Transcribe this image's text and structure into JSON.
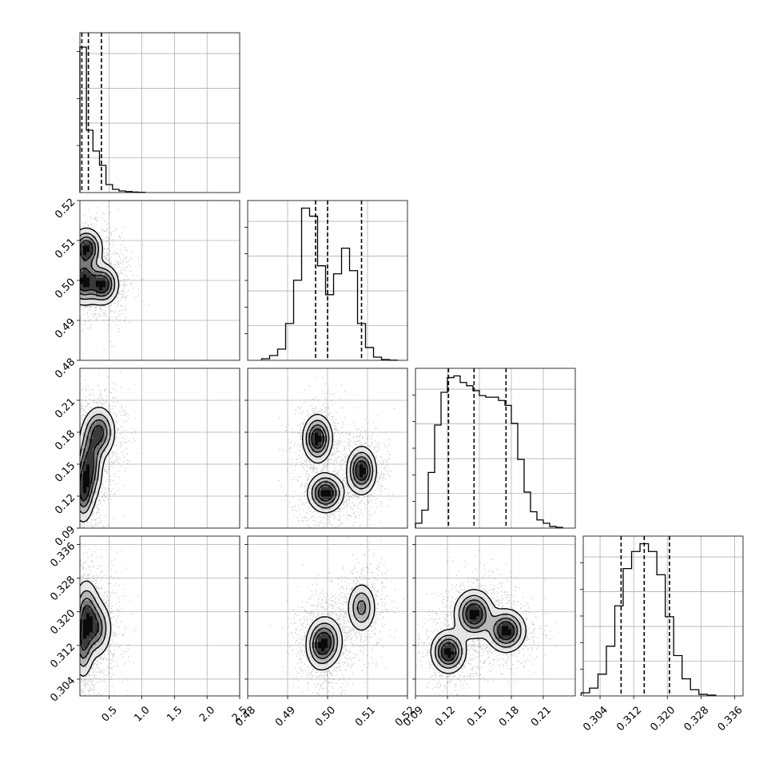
{
  "chart_data": {
    "type": "corner",
    "grid": true,
    "legend": "none",
    "parameters": [
      {
        "ylim": [
          0,
          1.0
        ],
        "range": [
          0.05,
          2.5
        ],
        "ticks": [
          0.5,
          1.0,
          1.5,
          2.0,
          2.5
        ],
        "tick_labels": [
          "0.5",
          "1.0",
          "1.5",
          "2.0",
          "2.5"
        ]
      },
      {
        "range": [
          0.48,
          0.52
        ],
        "ticks": [
          0.48,
          0.49,
          0.5,
          0.51,
          0.52
        ],
        "tick_labels": [
          "0.48",
          "0.49",
          "0.50",
          "0.51",
          "0.52"
        ]
      },
      {
        "range": [
          0.09,
          0.24
        ],
        "ticks": [
          0.09,
          0.12,
          0.15,
          0.18,
          0.21
        ],
        "tick_labels": [
          "0.09",
          "0.12",
          "0.15",
          "0.18",
          "0.21"
        ]
      },
      {
        "range": [
          0.3,
          0.338
        ],
        "ticks": [
          0.304,
          0.312,
          0.32,
          0.328,
          0.336
        ],
        "tick_labels": [
          "0.304",
          "0.312",
          "0.320",
          "0.328",
          "0.336"
        ]
      }
    ],
    "histograms": [
      {
        "param": 0,
        "bin_edges": [
          0.05,
          0.15,
          0.25,
          0.35,
          0.45,
          0.55,
          0.65,
          0.75,
          0.85,
          0.95,
          1.05
        ],
        "counts": [
          0.91,
          0.39,
          0.26,
          0.17,
          0.05,
          0.02,
          0.01,
          0.006,
          0.003,
          0.001
        ],
        "quantiles": [
          0.08,
          0.18,
          0.38
        ]
      },
      {
        "param": 1,
        "bin_edges": [
          0.4835,
          0.4855,
          0.4875,
          0.4895,
          0.4915,
          0.4935,
          0.4955,
          0.4975,
          0.4995,
          0.5015,
          0.5035,
          0.5055,
          0.5075,
          0.5095,
          0.5115,
          0.5135,
          0.5155,
          0.5175
        ],
        "counts": [
          0.01,
          0.03,
          0.07,
          0.23,
          0.5,
          0.95,
          0.9,
          0.59,
          0.41,
          0.54,
          0.7,
          0.56,
          0.23,
          0.08,
          0.02,
          0.005,
          0.001
        ],
        "quantiles": [
          0.497,
          0.5,
          0.5085
        ]
      },
      {
        "param": 2,
        "bin_edges": [
          0.09,
          0.096,
          0.102,
          0.108,
          0.114,
          0.12,
          0.126,
          0.132,
          0.138,
          0.144,
          0.15,
          0.156,
          0.162,
          0.168,
          0.174,
          0.18,
          0.186,
          0.192,
          0.198,
          0.204,
          0.21,
          0.216,
          0.222,
          0.228
        ],
        "counts": [
          0.03,
          0.11,
          0.34,
          0.63,
          0.83,
          0.92,
          0.93,
          0.89,
          0.87,
          0.84,
          0.81,
          0.8,
          0.8,
          0.78,
          0.75,
          0.64,
          0.42,
          0.22,
          0.1,
          0.05,
          0.03,
          0.01,
          0.005
        ],
        "quantiles": [
          0.121,
          0.145,
          0.175
        ]
      },
      {
        "param": 3,
        "bin_edges": [
          0.2995,
          0.3015,
          0.3035,
          0.3055,
          0.3075,
          0.3095,
          0.3115,
          0.3135,
          0.3155,
          0.3175,
          0.3195,
          0.3215,
          0.3235,
          0.3255,
          0.3275,
          0.3295,
          0.3315
        ],
        "counts": [
          0.02,
          0.05,
          0.14,
          0.32,
          0.58,
          0.82,
          0.93,
          0.98,
          0.93,
          0.78,
          0.51,
          0.26,
          0.11,
          0.04,
          0.01,
          0.005
        ],
        "quantiles": [
          0.309,
          0.3145,
          0.3205
        ]
      }
    ],
    "pairs": [
      {
        "x_param": 0,
        "y_param": 1,
        "modes": [
          {
            "x": 0.1,
            "y": 0.5,
            "sx": 0.12,
            "sy": 0.003
          },
          {
            "x": 0.15,
            "y": 0.508,
            "sx": 0.12,
            "sy": 0.0025
          },
          {
            "x": 0.4,
            "y": 0.499,
            "sx": 0.12,
            "sy": 0.0025
          }
        ]
      },
      {
        "x_param": 0,
        "y_param": 2,
        "modes": [
          {
            "x": 0.1,
            "y": 0.125,
            "sx": 0.08,
            "sy": 0.015
          },
          {
            "x": 0.2,
            "y": 0.15,
            "sx": 0.1,
            "sy": 0.018
          },
          {
            "x": 0.35,
            "y": 0.18,
            "sx": 0.12,
            "sy": 0.012
          }
        ]
      },
      {
        "x_param": 0,
        "y_param": 3,
        "modes": [
          {
            "x": 0.1,
            "y": 0.312,
            "sx": 0.08,
            "sy": 0.004
          },
          {
            "x": 0.15,
            "y": 0.32,
            "sx": 0.1,
            "sy": 0.004
          },
          {
            "x": 0.3,
            "y": 0.316,
            "sx": 0.12,
            "sy": 0.0035
          }
        ]
      },
      {
        "x_param": 1,
        "y_param": 2,
        "modes": [
          {
            "x": 0.4975,
            "y": 0.174,
            "sx": 0.0018,
            "sy": 0.011
          },
          {
            "x": 0.4995,
            "y": 0.123,
            "sx": 0.0022,
            "sy": 0.009
          },
          {
            "x": 0.5085,
            "y": 0.144,
            "sx": 0.0018,
            "sy": 0.011
          }
        ]
      },
      {
        "x_param": 1,
        "y_param": 3,
        "modes": [
          {
            "x": 0.498,
            "y": 0.312,
            "sx": 0.0018,
            "sy": 0.003
          },
          {
            "x": 0.5,
            "y": 0.313,
            "sx": 0.002,
            "sy": 0.003
          },
          {
            "x": 0.5085,
            "y": 0.321,
            "sx": 0.0018,
            "sy": 0.003
          }
        ]
      },
      {
        "x_param": 2,
        "y_param": 3,
        "modes": [
          {
            "x": 0.121,
            "y": 0.3105,
            "sx": 0.008,
            "sy": 0.0025
          },
          {
            "x": 0.145,
            "y": 0.3195,
            "sx": 0.009,
            "sy": 0.0028
          },
          {
            "x": 0.175,
            "y": 0.3155,
            "sx": 0.009,
            "sy": 0.0025
          }
        ]
      }
    ]
  }
}
